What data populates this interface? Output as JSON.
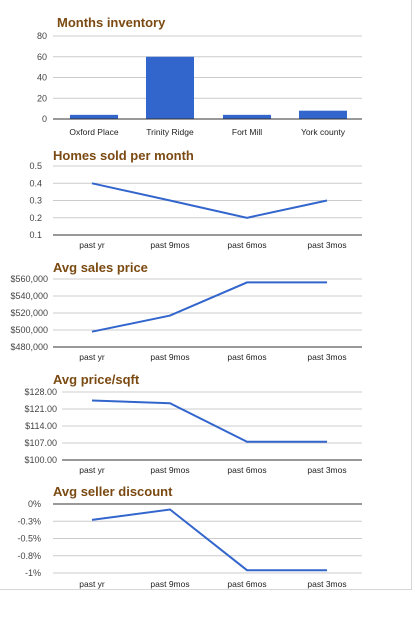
{
  "chart_data": [
    {
      "type": "bar",
      "title": "Months inventory",
      "categories": [
        "Oxford Place",
        "Trinity Ridge",
        "Fort Mill",
        "York county"
      ],
      "values": [
        4,
        60,
        4,
        8
      ],
      "ylim": [
        0,
        80
      ],
      "yticks": [
        80,
        60,
        40,
        20,
        0
      ],
      "ytick_labels": [
        "80",
        "60",
        "40",
        "20",
        "0"
      ],
      "color": "#3366cc"
    },
    {
      "type": "line",
      "title": "Homes sold per month",
      "categories": [
        "past yr",
        "past 9mos",
        "past 6mos",
        "past 3mos"
      ],
      "values": [
        0.4,
        0.3,
        0.2,
        0.3
      ],
      "ylim": [
        0.1,
        0.5
      ],
      "yticks": [
        0.5,
        0.4,
        0.3,
        0.2,
        0.1
      ],
      "ytick_labels": [
        "0.5",
        "0.4",
        "0.3",
        "0.2",
        "0.1"
      ],
      "color": "#3366cc"
    },
    {
      "type": "line",
      "title": "Avg sales price",
      "categories": [
        "past yr",
        "past 9mos",
        "past 6mos",
        "past 3mos"
      ],
      "values": [
        498000,
        517000,
        556000,
        556000
      ],
      "ylim": [
        480000,
        560000
      ],
      "yticks": [
        560000,
        540000,
        520000,
        500000,
        480000
      ],
      "ytick_labels": [
        "$560,000",
        "$540,000",
        "$520,000",
        "$500,000",
        "$480,000"
      ],
      "color": "#3366cc"
    },
    {
      "type": "line",
      "title": "Avg price/sqft",
      "categories": [
        "past yr",
        "past 9mos",
        "past 6mos",
        "past 3mos"
      ],
      "values": [
        124.5,
        123.4,
        107.5,
        107.5
      ],
      "ylim": [
        100,
        128
      ],
      "yticks": [
        128,
        121,
        114,
        107,
        100
      ],
      "ytick_labels": [
        "$128.00",
        "$121.00",
        "$114.00",
        "$107.00",
        "$100.00"
      ],
      "color": "#3366cc"
    },
    {
      "type": "line",
      "title": "Avg seller discount",
      "categories": [
        "past yr",
        "past 9mos",
        "past 6mos",
        "past 3mos"
      ],
      "values": [
        -0.0023,
        -0.0008,
        -0.0096,
        -0.0096
      ],
      "ylim": [
        -0.01,
        0
      ],
      "yticks": [
        0,
        -0.0025,
        -0.005,
        -0.0075,
        -0.01
      ],
      "ytick_labels": [
        "0%",
        "-0.3%",
        "-0.5%",
        "-0.8%",
        "-1%"
      ],
      "color": "#3366cc"
    }
  ]
}
